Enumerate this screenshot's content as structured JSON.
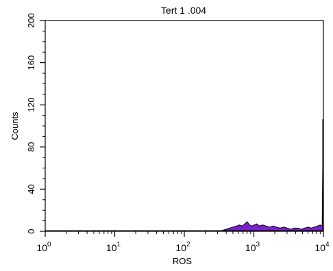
{
  "chart_data": {
    "type": "histogram",
    "title": "Tert 1 .004",
    "xlabel": "ROS",
    "ylabel": "Counts",
    "x_scale": "log",
    "xlim": [
      1,
      10000
    ],
    "ylim": [
      0,
      200
    ],
    "x_ticks": [
      {
        "value": 1,
        "base": "10",
        "exp": "0"
      },
      {
        "value": 10,
        "base": "10",
        "exp": "1"
      },
      {
        "value": 100,
        "base": "10",
        "exp": "2"
      },
      {
        "value": 1000,
        "base": "10",
        "exp": "3"
      },
      {
        "value": 10000,
        "base": "10",
        "exp": "4"
      }
    ],
    "y_ticks": [
      {
        "value": 0,
        "label": "0"
      },
      {
        "value": 40,
        "label": "40"
      },
      {
        "value": 80,
        "label": "80"
      },
      {
        "value": 120,
        "label": "120"
      },
      {
        "value": 160,
        "label": "160"
      },
      {
        "value": 200,
        "label": "200"
      }
    ],
    "fill_color": "#7a22cc",
    "series": [
      {
        "x": [
          320,
          360,
          400,
          450,
          500,
          560,
          620,
          680,
          740,
          800,
          870,
          940,
          1000,
          1100,
          1200,
          1350,
          1500,
          1700,
          1900,
          2100,
          2400,
          2700,
          3000,
          3400,
          3800,
          4300,
          4800,
          5400,
          6000,
          6700,
          7400,
          8200,
          9000,
          9600,
          9900
        ],
        "y": [
          0.5,
          1,
          2,
          3,
          4,
          5,
          6,
          5,
          7,
          9,
          6,
          5,
          6,
          7,
          5,
          6,
          5,
          4,
          5,
          4,
          3,
          4,
          3,
          2,
          3,
          3,
          2,
          3,
          4,
          3,
          4,
          5,
          6,
          5,
          106
        ]
      }
    ]
  }
}
